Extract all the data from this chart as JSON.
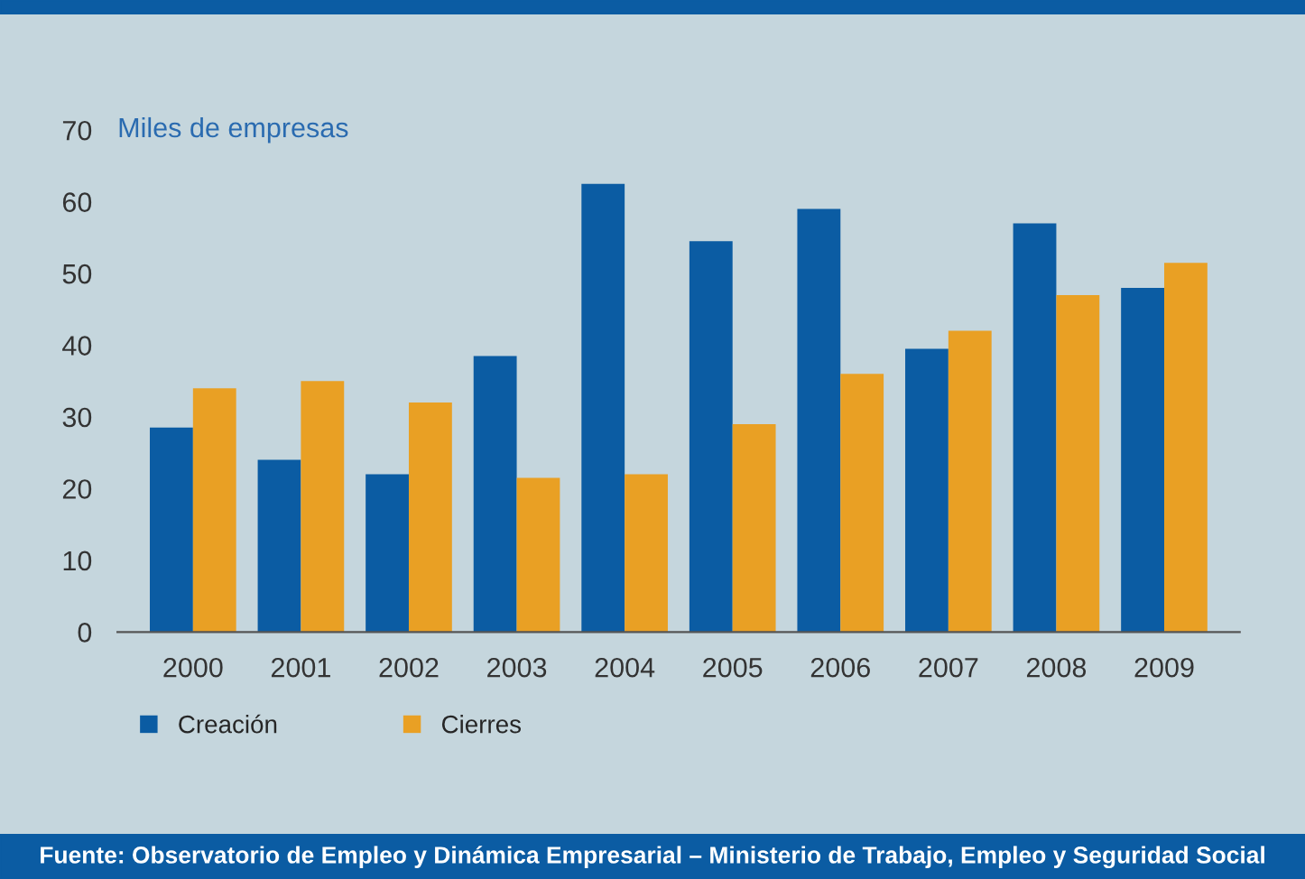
{
  "chart_data": {
    "type": "bar",
    "categories": [
      "2000",
      "2001",
      "2002",
      "2003",
      "2004",
      "2005",
      "2006",
      "2007",
      "2008",
      "2009"
    ],
    "series": [
      {
        "name": "Creación",
        "color": "#0b5ca3",
        "values": [
          28.5,
          24,
          22,
          38.5,
          62.5,
          54.5,
          59,
          39.5,
          57,
          48
        ]
      },
      {
        "name": "Cierres",
        "color": "#e9a024",
        "values": [
          34,
          35,
          32,
          21.5,
          22,
          29,
          36,
          42,
          47,
          51.5
        ]
      }
    ],
    "ylabel": "Miles de empresas",
    "ylim": [
      0,
      70
    ],
    "yticks": [
      0,
      10,
      20,
      30,
      40,
      50,
      60,
      70
    ],
    "grid": false,
    "legend": "bottom left",
    "annotations": [
      "Fuente: Observatorio de Empleo y Dinámica Empresarial – Ministerio de Trabajo, Empleo y Seguridad Social"
    ]
  }
}
